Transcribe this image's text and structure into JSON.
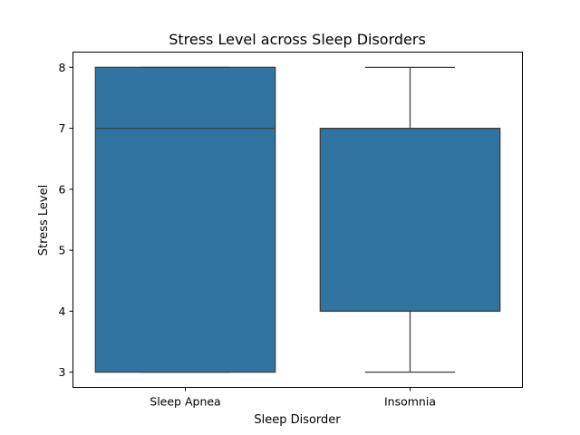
{
  "chart_data": {
    "type": "box",
    "title": "Stress Level across Sleep Disorders",
    "xlabel": "Sleep Disorder",
    "ylabel": "Stress Level",
    "categories": [
      "Sleep Apnea",
      "Insomnia"
    ],
    "boxes": [
      {
        "category": "Sleep Apnea",
        "whisker_low": 3,
        "q1": 3,
        "median": 7,
        "q3": 8,
        "whisker_high": 8
      },
      {
        "category": "Insomnia",
        "whisker_low": 3,
        "q1": 4,
        "median": 7,
        "q3": 7,
        "whisker_high": 8
      }
    ],
    "ylim": [
      2.75,
      8.25
    ],
    "yticks": [
      3,
      4,
      5,
      6,
      7,
      8
    ],
    "grid": false,
    "colors": {
      "box_fill": "#3274a1",
      "line": "#3d3d3d",
      "axes": "#000000"
    }
  }
}
